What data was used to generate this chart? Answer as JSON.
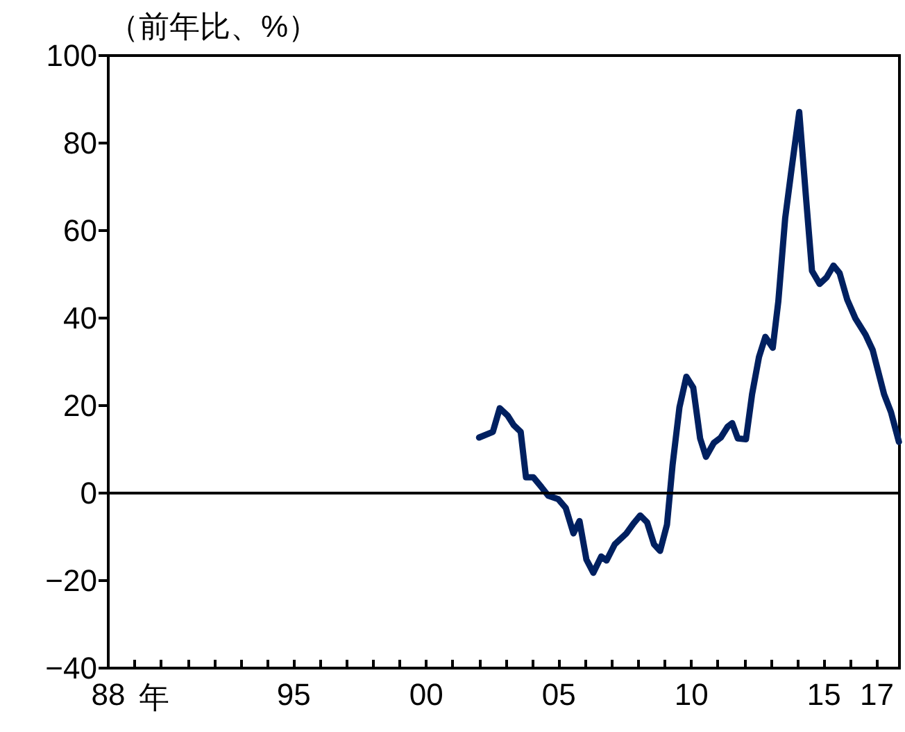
{
  "chart_data": {
    "type": "line",
    "ylabel": "（前年比、%）",
    "xlabel": "年",
    "xlim": [
      1988,
      2017.85
    ],
    "ylim": [
      -40,
      100
    ],
    "yticks": [
      {
        "value": -40,
        "label": "−40"
      },
      {
        "value": -20,
        "label": "−20"
      },
      0,
      20,
      40,
      60,
      80,
      100
    ],
    "xticks": [
      {
        "value": 1988,
        "label": "88"
      },
      {
        "value": 1989,
        "label": null
      },
      {
        "value": 1990,
        "label": null
      },
      {
        "value": 1991,
        "label": null
      },
      {
        "value": 1992,
        "label": null
      },
      {
        "value": 1993,
        "label": null
      },
      {
        "value": 1994,
        "label": null
      },
      {
        "value": 1995,
        "label": "95"
      },
      {
        "value": 1996,
        "label": null
      },
      {
        "value": 1997,
        "label": null
      },
      {
        "value": 1998,
        "label": null
      },
      {
        "value": 1999,
        "label": null
      },
      {
        "value": 2000,
        "label": "00"
      },
      {
        "value": 2001,
        "label": null
      },
      {
        "value": 2002,
        "label": null
      },
      {
        "value": 2003,
        "label": null
      },
      {
        "value": 2004,
        "label": null
      },
      {
        "value": 2005,
        "label": "05"
      },
      {
        "value": 2006,
        "label": null
      },
      {
        "value": 2007,
        "label": null
      },
      {
        "value": 2008,
        "label": null
      },
      {
        "value": 2009,
        "label": null
      },
      {
        "value": 2010,
        "label": "10"
      },
      {
        "value": 2011,
        "label": null
      },
      {
        "value": 2012,
        "label": null
      },
      {
        "value": 2013,
        "label": null
      },
      {
        "value": 2014,
        "label": null
      },
      {
        "value": 2015,
        "label": "15"
      },
      {
        "value": 2016,
        "label": null
      },
      {
        "value": 2017,
        "label": "17"
      }
    ],
    "grid": false,
    "marker": "none",
    "line_style": "solid",
    "ref_lines": [
      {
        "axis": "y",
        "value": 0,
        "color": "#000000"
      }
    ],
    "series": [
      {
        "color": "#002060",
        "x": [
          2001.99,
          2002.51,
          2002.77,
          2003.07,
          2003.3,
          2003.56,
          2003.76,
          2004.04,
          2004.34,
          2004.6,
          2004.98,
          2005.26,
          2005.55,
          2005.78,
          2006.04,
          2006.3,
          2006.6,
          2006.8,
          2007.11,
          2007.55,
          2007.81,
          2008.07,
          2008.33,
          2008.59,
          2008.82,
          2009.08,
          2009.29,
          2009.55,
          2009.81,
          2010.07,
          2010.33,
          2010.55,
          2010.85,
          2011.11,
          2011.37,
          2011.54,
          2011.75,
          2012.06,
          2012.29,
          2012.55,
          2012.79,
          2013.07,
          2013.28,
          2013.54,
          2013.8,
          2014.07,
          2014.32,
          2014.55,
          2014.84,
          2015.1,
          2015.36,
          2015.59,
          2015.88,
          2016.19,
          2016.57,
          2016.84,
          2017.27,
          2017.53,
          2017.83
        ],
        "values": [
          12.7,
          14.0,
          19.4,
          17.7,
          15.5,
          14.0,
          3.6,
          3.6,
          1.4,
          -0.6,
          -1.4,
          -3.4,
          -9.2,
          -6.4,
          -15.2,
          -18.2,
          -14.5,
          -15.4,
          -11.7,
          -9.2,
          -7.0,
          -5.1,
          -6.7,
          -11.7,
          -13.2,
          -7.2,
          6.4,
          19.6,
          26.6,
          24.1,
          12.5,
          8.3,
          11.5,
          12.7,
          15.2,
          16.0,
          12.5,
          12.3,
          22.6,
          31.1,
          35.7,
          33.2,
          43.8,
          62.9,
          75.0,
          87.1,
          67.9,
          50.8,
          47.8,
          49.3,
          52.0,
          50.3,
          44.2,
          39.9,
          36.2,
          32.7,
          22.6,
          18.5,
          11.7
        ]
      }
    ]
  }
}
